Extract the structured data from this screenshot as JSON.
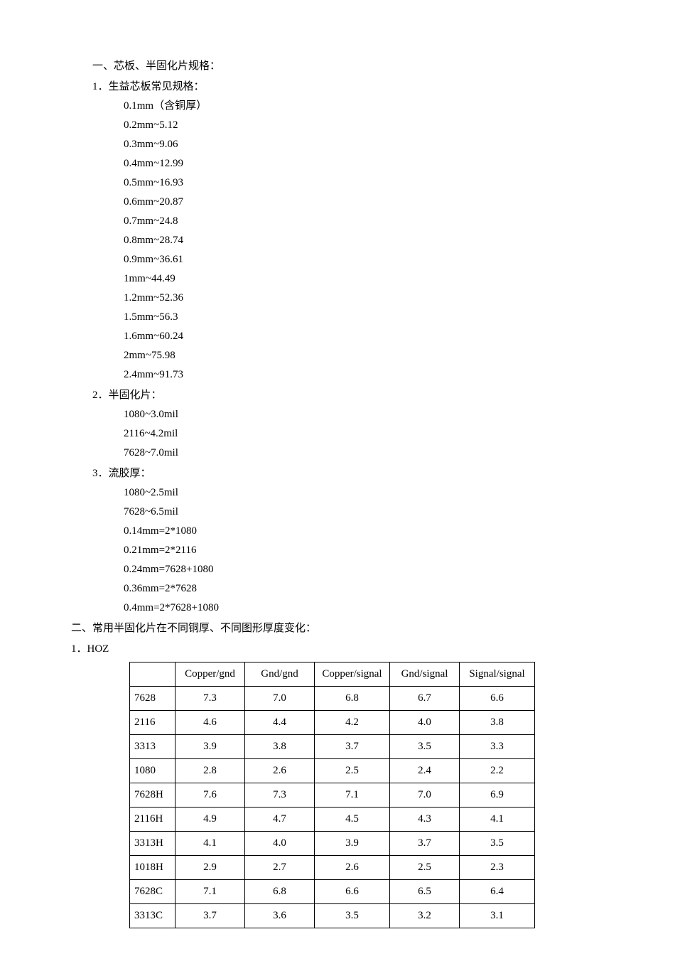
{
  "section1": {
    "heading": "一、芯板、半固化片规格：",
    "sub1": {
      "heading": "1．生益芯板常见规格：",
      "items": [
        "0.1mm（含铜厚）",
        "0.2mm~5.12",
        "0.3mm~9.06",
        "0.4mm~12.99",
        "0.5mm~16.93",
        "0.6mm~20.87",
        "0.7mm~24.8",
        "0.8mm~28.74",
        "0.9mm~36.61",
        "1mm~44.49",
        "1.2mm~52.36",
        "1.5mm~56.3",
        "1.6mm~60.24",
        "2mm~75.98",
        "2.4mm~91.73"
      ]
    },
    "sub2": {
      "heading": "2．半固化片：",
      "items": [
        "1080~3.0mil",
        "2116~4.2mil",
        "7628~7.0mil"
      ]
    },
    "sub3": {
      "heading": "3．流胶厚：",
      "items": [
        "1080~2.5mil",
        "7628~6.5mil",
        "0.14mm=2*1080",
        "0.21mm=2*2116",
        "0.24mm=7628+1080",
        "0.36mm=2*7628",
        "0.4mm=2*7628+1080"
      ]
    }
  },
  "section2": {
    "heading": "二、常用半固化片在不同铜厚、不同图形厚度变化：",
    "sub1": {
      "heading": "1．HOZ"
    }
  },
  "table": {
    "columns": [
      "",
      "Copper/gnd",
      "Gnd/gnd",
      "Copper/signal",
      "Gnd/signal",
      "Signal/signal"
    ],
    "rows": [
      [
        "7628",
        "7.3",
        "7.0",
        "6.8",
        "6.7",
        "6.6"
      ],
      [
        "2116",
        "4.6",
        "4.4",
        "4.2",
        "4.0",
        "3.8"
      ],
      [
        "3313",
        "3.9",
        "3.8",
        "3.7",
        "3.5",
        "3.3"
      ],
      [
        "1080",
        "2.8",
        "2.6",
        "2.5",
        "2.4",
        "2.2"
      ],
      [
        "7628H",
        "7.6",
        "7.3",
        "7.1",
        "7.0",
        "6.9"
      ],
      [
        "2116H",
        "4.9",
        "4.7",
        "4.5",
        "4.3",
        "4.1"
      ],
      [
        "3313H",
        "4.1",
        "4.0",
        "3.9",
        "3.7",
        "3.5"
      ],
      [
        "1018H",
        "2.9",
        "2.7",
        "2.6",
        "2.5",
        "2.3"
      ],
      [
        "7628C",
        "7.1",
        "6.8",
        "6.6",
        "6.5",
        "6.4"
      ],
      [
        "3313C",
        "3.7",
        "3.6",
        "3.5",
        "3.2",
        "3.1"
      ]
    ],
    "text_color": "#000000",
    "border_color": "#000000",
    "background_color": "#ffffff",
    "font_size": 15
  }
}
